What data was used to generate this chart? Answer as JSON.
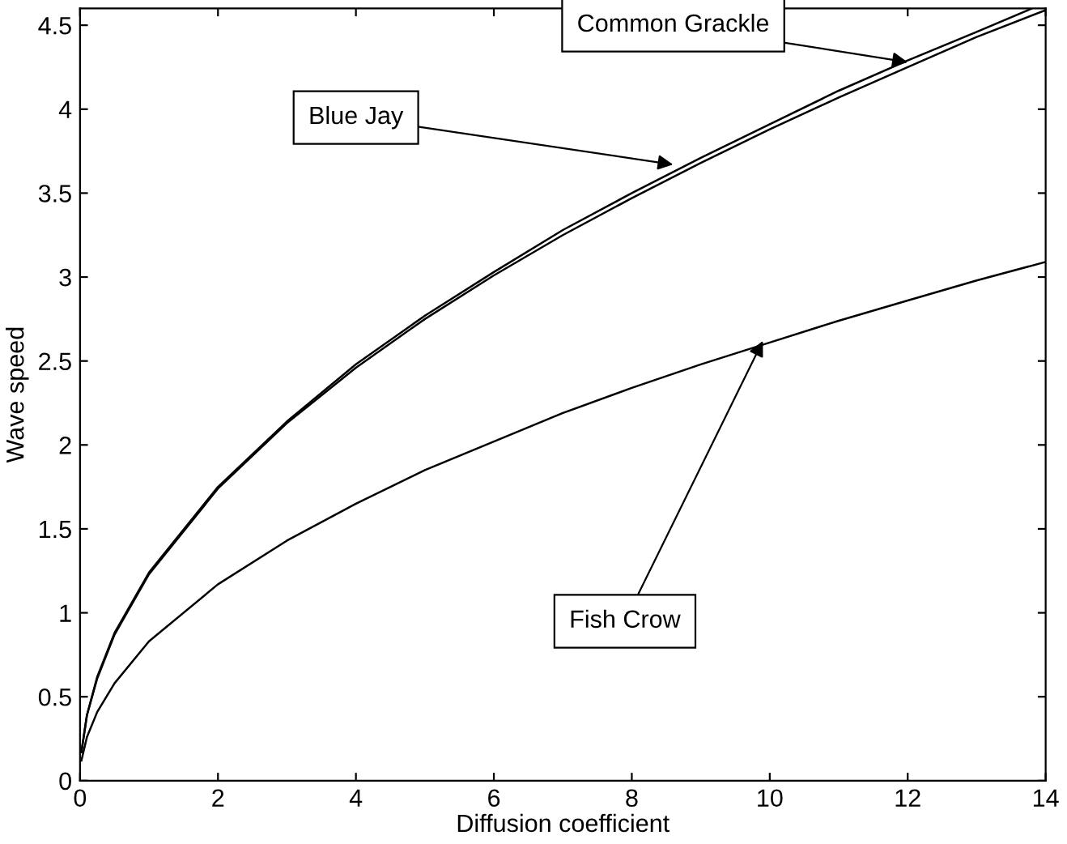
{
  "chart_data": {
    "type": "line",
    "xlabel": "Diffusion coefficient",
    "ylabel": "Wave speed",
    "x": [
      0.02,
      0.1,
      0.25,
      0.5,
      1,
      2,
      3,
      4,
      5,
      6,
      7,
      8,
      9,
      10,
      11,
      12,
      13,
      14
    ],
    "series": [
      {
        "color": "#000000",
        "x": [
          0.02,
          0.1,
          0.25,
          0.5,
          1,
          2,
          3,
          4,
          5,
          6,
          7,
          8,
          9,
          10,
          11,
          12,
          13,
          13.8
        ],
        "values": [
          0.17,
          0.39,
          0.62,
          0.88,
          1.24,
          1.75,
          2.14,
          2.48,
          2.77,
          3.03,
          3.28,
          3.5,
          3.71,
          3.91,
          4.11,
          4.29,
          4.46,
          4.6
        ]
      },
      {
        "color": "#000000",
        "values": [
          0.17,
          0.39,
          0.61,
          0.87,
          1.23,
          1.74,
          2.13,
          2.46,
          2.75,
          3.01,
          3.25,
          3.47,
          3.68,
          3.88,
          4.07,
          4.25,
          4.43,
          4.59
        ]
      },
      {
        "color": "#000000",
        "values": [
          0.12,
          0.26,
          0.41,
          0.58,
          0.83,
          1.17,
          1.43,
          1.65,
          1.85,
          2.02,
          2.19,
          2.34,
          2.48,
          2.61,
          2.74,
          2.86,
          2.98,
          3.09
        ]
      }
    ],
    "annotations": [
      {
        "text": "Common Grackle",
        "x": 12,
        "y": 4.28
      },
      {
        "text": "Blue Jay",
        "x": 8.6,
        "y": 3.67
      },
      {
        "text": "Fish Crow",
        "x": 9.9,
        "y": 2.62
      }
    ],
    "xlim": [
      0,
      14
    ],
    "xticks": [
      0,
      2,
      4,
      6,
      8,
      10,
      12,
      14
    ],
    "ylim": [
      0,
      4.6
    ],
    "yticks": [
      0,
      0.5,
      1,
      1.5,
      2,
      2.5,
      3,
      3.5,
      4,
      4.5
    ],
    "grid": false,
    "legend": false
  }
}
